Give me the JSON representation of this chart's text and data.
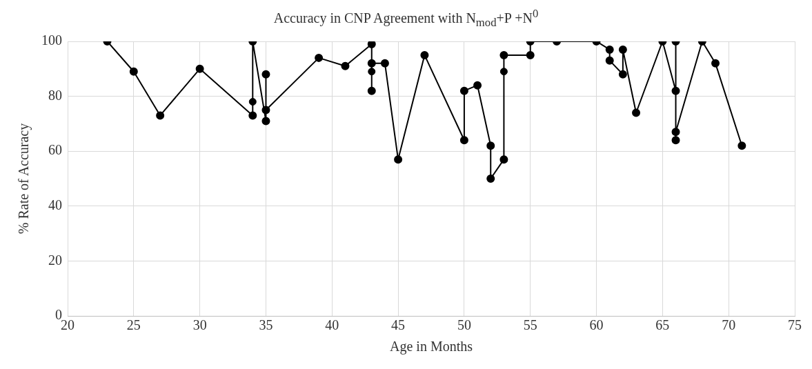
{
  "chart_data": {
    "type": "line",
    "title": "Accuracy in CNP Agreement with N$_{mod}$+P +N$^{0}$",
    "xlabel": "Age in Months",
    "ylabel": "% Rate of Accuracy",
    "x": [
      23,
      25,
      27,
      30,
      34,
      34,
      35,
      35,
      35,
      39,
      41,
      43,
      43,
      43,
      44,
      45,
      47,
      50,
      50,
      51,
      52,
      52,
      53,
      53,
      55,
      55,
      57,
      60,
      61,
      61,
      62,
      62,
      63,
      65,
      66,
      66,
      66,
      66,
      68,
      69,
      71
    ],
    "series": [
      {
        "color": "#000000",
        "values": [
          100,
          89,
          73,
          90,
          73,
          100,
          71,
          88,
          75,
          94,
          91,
          99,
          82,
          92,
          92,
          57,
          95,
          64,
          82,
          84,
          62,
          50,
          57,
          95,
          95,
          100,
          100,
          100,
          97,
          93,
          88,
          97,
          74,
          100,
          82,
          100,
          64,
          67,
          100,
          92,
          62
        ]
      },
      {
        "type": "scatter",
        "color": "#000000",
        "x": [
          34,
          43,
          53
        ],
        "values": [
          78,
          89,
          89
        ]
      }
    ],
    "xlim": [
      20,
      75
    ],
    "xticks": [
      20,
      25,
      30,
      35,
      40,
      45,
      50,
      55,
      60,
      65,
      70,
      75
    ],
    "ylim": [
      0,
      100
    ],
    "yticks": [
      0,
      20,
      40,
      60,
      80,
      100
    ],
    "grid": true,
    "legend": false,
    "marker": "circle",
    "line_style": "solid"
  }
}
